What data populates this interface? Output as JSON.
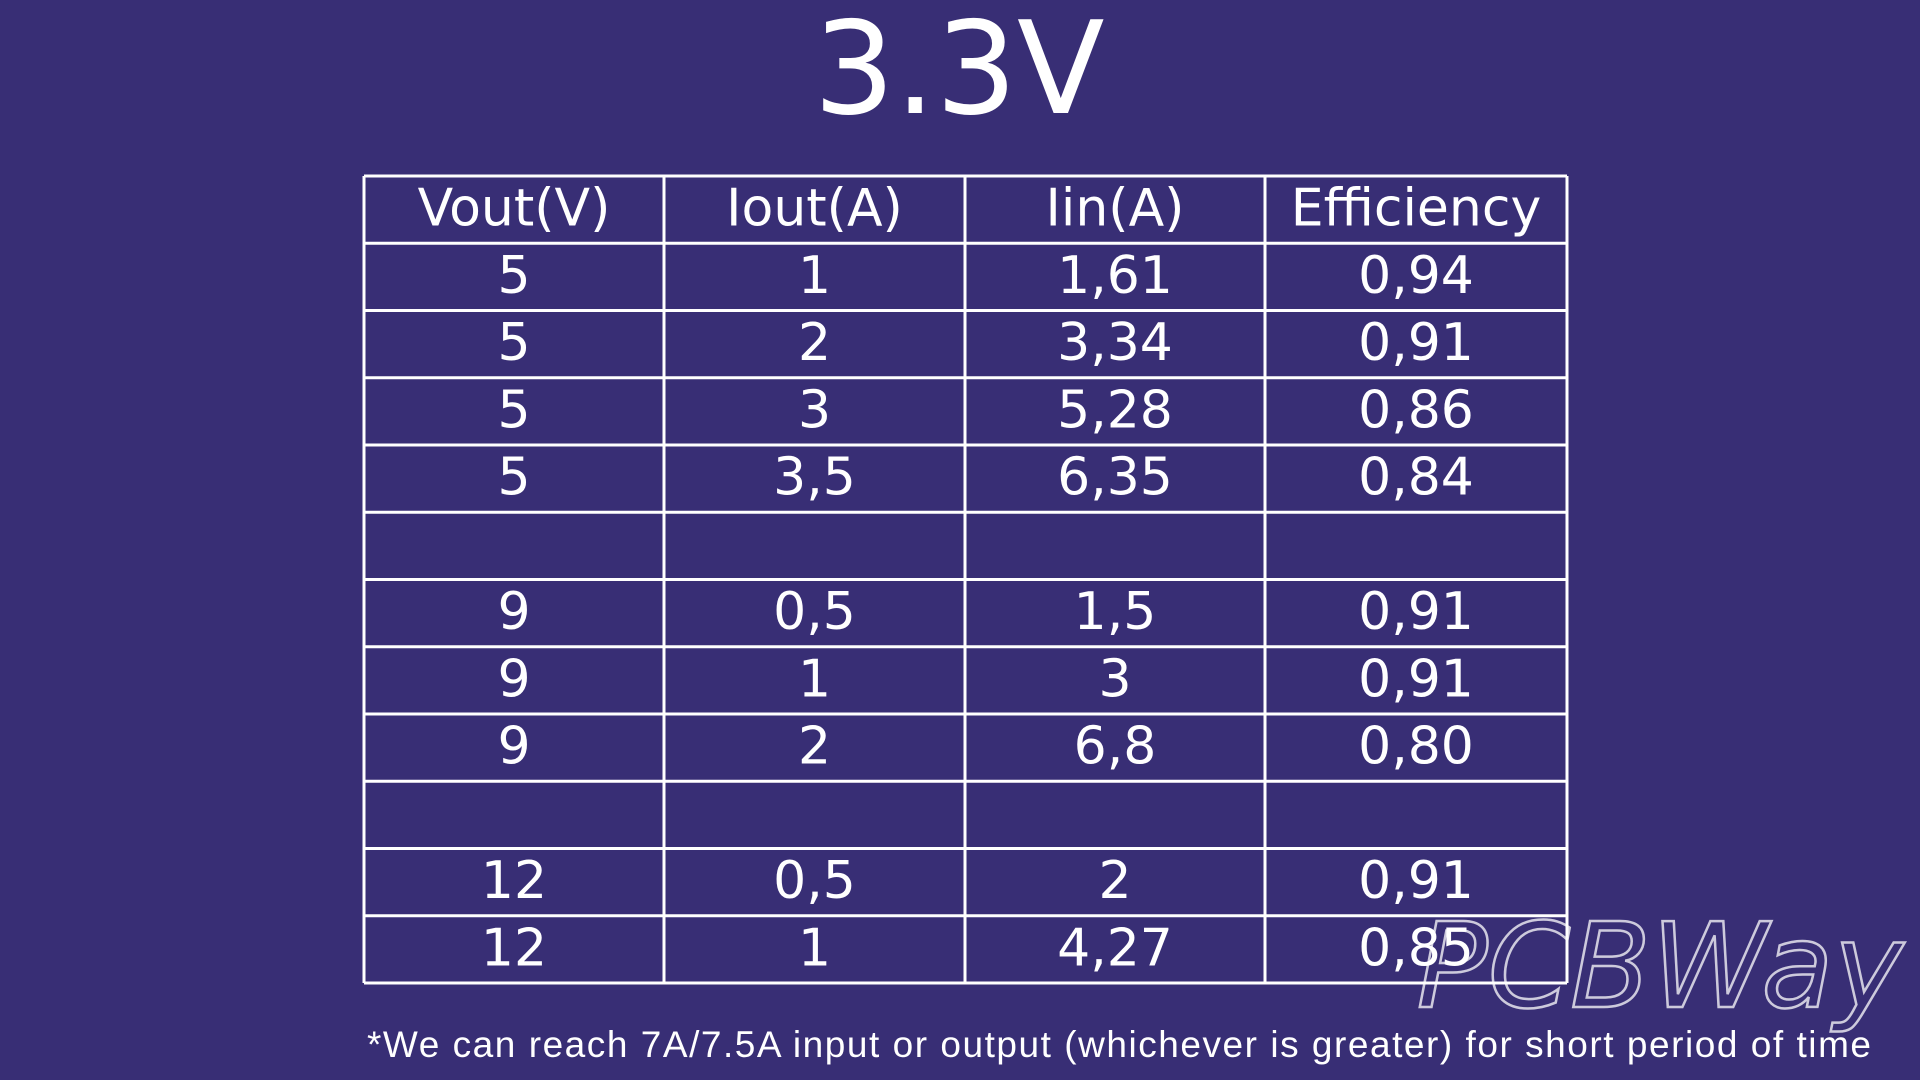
{
  "title": "3.3V",
  "table": {
    "header": [
      "Vout(V)",
      "Iout(A)",
      "Iin(A)",
      "Efficiency"
    ],
    "groups": [
      [
        [
          "5",
          "1",
          "1,61",
          "0,94"
        ],
        [
          "5",
          "2",
          "3,34",
          "0,91"
        ],
        [
          "5",
          "3",
          "5,28",
          "0,86"
        ],
        [
          "5",
          "3,5",
          "6,35",
          "0,84"
        ]
      ],
      [
        [
          "9",
          "0,5",
          "1,5",
          "0,91"
        ],
        [
          "9",
          "1",
          "3",
          "0,91"
        ],
        [
          "9",
          "2",
          "6,8",
          "0,80"
        ]
      ],
      [
        [
          "12",
          "0,5",
          "2",
          "0,91"
        ],
        [
          "12",
          "1",
          "4,27",
          "0,85"
        ]
      ]
    ]
  },
  "footnote": "*We can reach 7A/7.5A input or output (whichever is greater) for short period of time",
  "watermark": "PCBWay"
}
